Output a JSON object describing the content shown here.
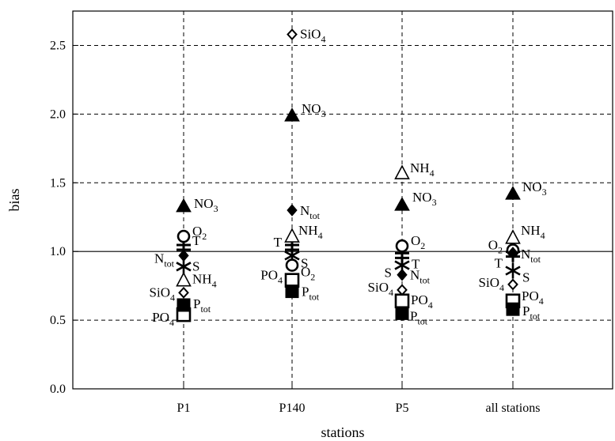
{
  "chart_data": {
    "type": "scatter",
    "xlabel": "stations",
    "ylabel": "bias",
    "categories": [
      "P1",
      "P140",
      "P5",
      "all stations"
    ],
    "ylim": [
      0,
      2.75
    ],
    "yticks": [
      "0.0",
      "0.5",
      "1.0",
      "1.5",
      "2.0",
      "2.5"
    ],
    "grid": "dashed",
    "reference_line": 1.0,
    "markers": {
      "T": "plus-cross",
      "S": "asterisk",
      "O2": "open-circle",
      "NH4": "open-triangle",
      "NO3": "filled-triangle",
      "Ntot": "filled-diamond",
      "SiO4": "open-diamond",
      "PO4": "open-square",
      "Ptot": "filled-square"
    },
    "series": [
      {
        "name": "T",
        "label": "T",
        "values": [
          1.03,
          1.03,
          0.97,
          0.98
        ]
      },
      {
        "name": "S",
        "label": "S",
        "values": [
          0.89,
          0.97,
          0.9,
          0.86
        ]
      },
      {
        "name": "O2",
        "label": "O",
        "sub": "2",
        "values": [
          1.11,
          0.9,
          1.04,
          1.01
        ]
      },
      {
        "name": "NH4",
        "label": "NH",
        "sub": "4",
        "values": [
          0.79,
          1.11,
          1.57,
          1.1
        ]
      },
      {
        "name": "NO3",
        "label": "NO",
        "sub": "3",
        "values": [
          1.33,
          1.99,
          1.34,
          1.42
        ]
      },
      {
        "name": "Ntot",
        "label": "N",
        "sub": "tot",
        "values": [
          0.97,
          1.3,
          0.83,
          0.99
        ]
      },
      {
        "name": "SiO4",
        "label": "SiO",
        "sub": "4",
        "values": [
          0.7,
          2.58,
          0.72,
          0.76
        ]
      },
      {
        "name": "PO4",
        "label": "PO",
        "sub": "4",
        "values": [
          0.54,
          0.79,
          0.64,
          0.64
        ]
      },
      {
        "name": "Ptot",
        "label": "P",
        "sub": "tot",
        "values": [
          0.61,
          0.71,
          0.55,
          0.58
        ]
      }
    ]
  }
}
